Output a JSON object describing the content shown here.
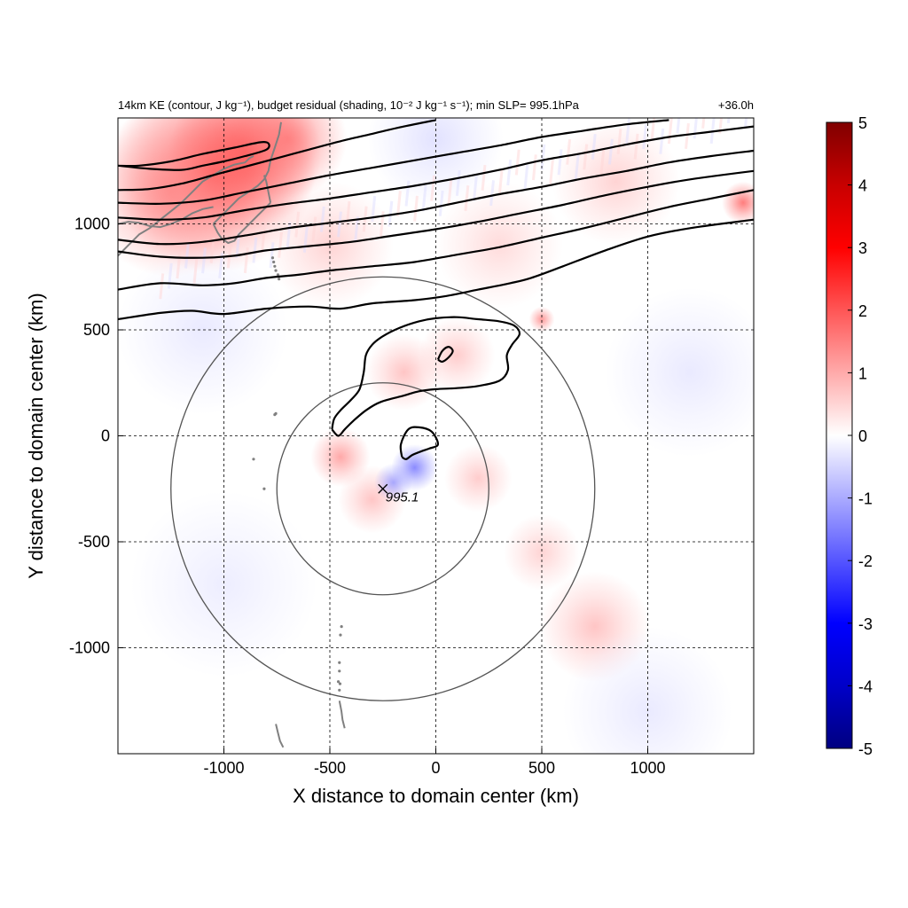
{
  "chart_data": {
    "type": "heatmap",
    "title_left": "14km KE (contour, J kg⁻¹), budget residual (shading, 10⁻² J kg⁻¹ s⁻¹); min SLP= 995.1hPa",
    "title_right": "+36.0h",
    "xlabel": "X distance to domain center (km)",
    "ylabel": "Y distance to domain center (km)",
    "xlim": [
      -1500,
      1500
    ],
    "ylim": [
      -1500,
      1500
    ],
    "xticks": [
      -1000,
      -500,
      0,
      500,
      1000
    ],
    "yticks": [
      -1000,
      -500,
      0,
      500,
      1000
    ],
    "grid": "dashed",
    "colorbar": {
      "min": -5,
      "max": 5,
      "ticks": [
        5,
        4,
        3,
        2,
        1,
        0,
        -1,
        -2,
        -3,
        -4,
        -5
      ],
      "colormap": "blue-white-red",
      "colors": {
        "low": "#000080",
        "mid_low": "#0000ff",
        "center": "#ffffff",
        "mid_high": "#ff0000",
        "high": "#800000"
      }
    },
    "min_slp": {
      "label": "995.1",
      "x": -250,
      "y": -250
    },
    "range_circles": [
      {
        "center": [
          -250,
          -250
        ],
        "radius_km": 500
      },
      {
        "center": [
          -250,
          -250
        ],
        "radius_km": 1000
      }
    ],
    "ke_contours": [
      {
        "points": [
          [
            -1500,
            550
          ],
          [
            -1300,
            580
          ],
          [
            -1150,
            590
          ],
          [
            -1000,
            575
          ],
          [
            -800,
            600
          ],
          [
            -600,
            610
          ],
          [
            -450,
            600
          ],
          [
            -300,
            625
          ],
          [
            -100,
            640
          ],
          [
            50,
            660
          ],
          [
            200,
            690
          ],
          [
            350,
            720
          ],
          [
            450,
            745
          ],
          [
            600,
            800
          ],
          [
            800,
            875
          ],
          [
            1000,
            940
          ],
          [
            1200,
            980
          ],
          [
            1500,
            1020
          ]
        ]
      },
      {
        "points": [
          [
            -1500,
            690
          ],
          [
            -1300,
            720
          ],
          [
            -1100,
            710
          ],
          [
            -950,
            720
          ],
          [
            -800,
            745
          ],
          [
            -650,
            760
          ],
          [
            -500,
            780
          ],
          [
            -300,
            800
          ],
          [
            -100,
            820
          ],
          [
            100,
            855
          ],
          [
            300,
            890
          ],
          [
            500,
            935
          ],
          [
            700,
            980
          ],
          [
            900,
            1030
          ],
          [
            1100,
            1080
          ],
          [
            1300,
            1120
          ],
          [
            1500,
            1160
          ]
        ]
      },
      {
        "points": [
          [
            -1500,
            870
          ],
          [
            -1300,
            845
          ],
          [
            -1100,
            840
          ],
          [
            -950,
            850
          ],
          [
            -800,
            875
          ],
          [
            -600,
            895
          ],
          [
            -400,
            915
          ],
          [
            -200,
            945
          ],
          [
            0,
            975
          ],
          [
            200,
            1010
          ],
          [
            400,
            1050
          ],
          [
            600,
            1090
          ],
          [
            800,
            1135
          ],
          [
            1000,
            1175
          ],
          [
            1200,
            1210
          ],
          [
            1500,
            1250
          ]
        ]
      },
      {
        "points": [
          [
            -1500,
            925
          ],
          [
            -1300,
            905
          ],
          [
            -1100,
            915
          ],
          [
            -900,
            945
          ],
          [
            -700,
            980
          ],
          [
            -500,
            1005
          ],
          [
            -300,
            1030
          ],
          [
            -100,
            1060
          ],
          [
            100,
            1100
          ],
          [
            300,
            1140
          ],
          [
            500,
            1175
          ],
          [
            700,
            1215
          ],
          [
            900,
            1250
          ],
          [
            1100,
            1290
          ],
          [
            1300,
            1320
          ],
          [
            1500,
            1345
          ]
        ]
      },
      {
        "points": [
          [
            -1500,
            1030
          ],
          [
            -1300,
            1020
          ],
          [
            -1100,
            1030
          ],
          [
            -900,
            1065
          ],
          [
            -700,
            1095
          ],
          [
            -500,
            1120
          ],
          [
            -300,
            1150
          ],
          [
            -100,
            1180
          ],
          [
            100,
            1215
          ],
          [
            300,
            1255
          ],
          [
            500,
            1300
          ],
          [
            700,
            1335
          ],
          [
            900,
            1375
          ],
          [
            1100,
            1410
          ],
          [
            1300,
            1435
          ],
          [
            1500,
            1460
          ]
        ]
      },
      {
        "points": [
          [
            -1500,
            1100
          ],
          [
            -1300,
            1095
          ],
          [
            -1100,
            1110
          ],
          [
            -900,
            1150
          ],
          [
            -700,
            1190
          ],
          [
            -500,
            1230
          ],
          [
            -300,
            1265
          ],
          [
            -100,
            1300
          ],
          [
            100,
            1335
          ],
          [
            300,
            1370
          ],
          [
            500,
            1410
          ],
          [
            700,
            1440
          ],
          [
            900,
            1470
          ],
          [
            1100,
            1490
          ]
        ]
      },
      {
        "points": [
          [
            -1500,
            1160
          ],
          [
            -1350,
            1165
          ],
          [
            -1200,
            1190
          ],
          [
            -1050,
            1230
          ],
          [
            -900,
            1270
          ],
          [
            -750,
            1310
          ],
          [
            -600,
            1350
          ],
          [
            -450,
            1390
          ],
          [
            -300,
            1425
          ],
          [
            -150,
            1460
          ],
          [
            0,
            1490
          ]
        ]
      },
      {
        "points": [
          [
            -1500,
            1275
          ],
          [
            -1350,
            1260
          ],
          [
            -1200,
            1255
          ],
          [
            -1100,
            1275
          ],
          [
            -1000,
            1295
          ],
          [
            -900,
            1320
          ],
          [
            -800,
            1350
          ],
          [
            -790,
            1380
          ],
          [
            -830,
            1385
          ],
          [
            -950,
            1360
          ],
          [
            -1100,
            1330
          ],
          [
            -1250,
            1295
          ],
          [
            -1400,
            1275
          ],
          [
            -1500,
            1275
          ]
        ]
      },
      {
        "points": [
          [
            -490,
            30
          ],
          [
            -480,
            80
          ],
          [
            -450,
            120
          ],
          [
            -400,
            170
          ],
          [
            -360,
            220
          ],
          [
            -340,
            300
          ],
          [
            -330,
            380
          ],
          [
            -300,
            430
          ],
          [
            -250,
            470
          ],
          [
            -170,
            510
          ],
          [
            -80,
            540
          ],
          [
            0,
            555
          ],
          [
            100,
            560
          ],
          [
            200,
            550
          ],
          [
            300,
            540
          ],
          [
            370,
            520
          ],
          [
            395,
            480
          ],
          [
            360,
            430
          ],
          [
            335,
            380
          ],
          [
            340,
            310
          ],
          [
            300,
            260
          ],
          [
            200,
            235
          ],
          [
            100,
            225
          ],
          [
            0,
            220
          ],
          [
            -80,
            210
          ],
          [
            -150,
            190
          ],
          [
            -260,
            160
          ],
          [
            -330,
            120
          ],
          [
            -390,
            70
          ],
          [
            -430,
            30
          ],
          [
            -460,
            0
          ],
          [
            -490,
            30
          ]
        ]
      },
      {
        "points": [
          [
            10,
            360
          ],
          [
            30,
            400
          ],
          [
            60,
            420
          ],
          [
            80,
            400
          ],
          [
            60,
            370
          ],
          [
            30,
            350
          ],
          [
            10,
            360
          ]
        ]
      },
      {
        "points": [
          [
            -160,
            -100
          ],
          [
            -165,
            -40
          ],
          [
            -130,
            30
          ],
          [
            -80,
            40
          ],
          [
            -20,
            20
          ],
          [
            10,
            -40
          ],
          [
            -30,
            -60
          ],
          [
            -60,
            -70
          ],
          [
            -110,
            -90
          ],
          [
            -140,
            -110
          ],
          [
            -160,
            -100
          ]
        ]
      }
    ],
    "residual_blobs": [
      {
        "x": -1050,
        "y": 1250,
        "value": 2.2,
        "sigma": 240
      },
      {
        "x": -900,
        "y": 1330,
        "value": 2.0,
        "sigma": 180
      },
      {
        "x": -1250,
        "y": 1150,
        "value": 1.4,
        "sigma": 200
      },
      {
        "x": -700,
        "y": 1400,
        "value": 1.6,
        "sigma": 140
      },
      {
        "x": -450,
        "y": -100,
        "value": 1.2,
        "sigma": 70
      },
      {
        "x": -300,
        "y": -300,
        "value": 0.8,
        "sigma": 80
      },
      {
        "x": -100,
        "y": -150,
        "value": -1.6,
        "sigma": 55
      },
      {
        "x": -200,
        "y": -220,
        "value": -1.2,
        "sigma": 45
      },
      {
        "x": 200,
        "y": -200,
        "value": 0.7,
        "sigma": 80
      },
      {
        "x": -150,
        "y": 300,
        "value": 0.8,
        "sigma": 90
      },
      {
        "x": 100,
        "y": 380,
        "value": 0.7,
        "sigma": 90
      },
      {
        "x": 500,
        "y": 550,
        "value": 1.4,
        "sigma": 30
      },
      {
        "x": 750,
        "y": -900,
        "value": 0.8,
        "sigma": 130
      },
      {
        "x": 500,
        "y": -550,
        "value": 0.6,
        "sigma": 90
      },
      {
        "x": 1450,
        "y": 1100,
        "value": 1.8,
        "sigma": 50
      },
      {
        "x": 300,
        "y": 900,
        "value": 0.5,
        "sigma": 150
      },
      {
        "x": -500,
        "y": 900,
        "value": 0.6,
        "sigma": 150
      },
      {
        "x": 1200,
        "y": 300,
        "value": -0.3,
        "sigma": 200
      },
      {
        "x": -1100,
        "y": 500,
        "value": -0.3,
        "sigma": 200
      },
      {
        "x": 1000,
        "y": -1300,
        "value": -0.3,
        "sigma": 200
      },
      {
        "x": -1000,
        "y": -700,
        "value": -0.25,
        "sigma": 220
      },
      {
        "x": 0,
        "y": 1400,
        "value": -0.4,
        "sigma": 160
      },
      {
        "x": 850,
        "y": 1200,
        "value": 0.6,
        "sigma": 150
      }
    ],
    "coastlines": [
      {
        "points": [
          [
            -1500,
            850
          ],
          [
            -1450,
            900
          ],
          [
            -1400,
            950
          ],
          [
            -1350,
            980
          ],
          [
            -1300,
            1020
          ],
          [
            -1250,
            1060
          ],
          [
            -1200,
            1100
          ],
          [
            -1150,
            1150
          ],
          [
            -1100,
            1200
          ],
          [
            -1050,
            1230
          ],
          [
            -1000,
            1260
          ],
          [
            -950,
            1280
          ],
          [
            -900,
            1290
          ],
          [
            -880,
            1310
          ],
          [
            -860,
            1320
          ]
        ]
      },
      {
        "points": [
          [
            -1500,
            1000
          ],
          [
            -1450,
            1010
          ],
          [
            -1400,
            1005
          ],
          [
            -1350,
            990
          ],
          [
            -1300,
            985
          ],
          [
            -1250,
            1000
          ],
          [
            -1200,
            1020
          ],
          [
            -1150,
            1050
          ],
          [
            -1100,
            1070
          ],
          [
            -1050,
            1080
          ]
        ]
      },
      {
        "points": [
          [
            -1050,
            1000
          ],
          [
            -1020,
            1030
          ],
          [
            -990,
            1060
          ],
          [
            -960,
            1090
          ],
          [
            -930,
            1120
          ],
          [
            -900,
            1140
          ],
          [
            -870,
            1160
          ],
          [
            -840,
            1180
          ],
          [
            -810,
            1210
          ],
          [
            -790,
            1250
          ],
          [
            -780,
            1300
          ],
          [
            -760,
            1360
          ],
          [
            -740,
            1420
          ],
          [
            -730,
            1480
          ]
        ]
      },
      {
        "points": [
          [
            -1050,
            1000
          ],
          [
            -1030,
            960
          ],
          [
            -1010,
            930
          ],
          [
            -980,
            910
          ],
          [
            -950,
            920
          ],
          [
            -930,
            950
          ],
          [
            -900,
            980
          ],
          [
            -880,
            1000
          ],
          [
            -860,
            1020
          ],
          [
            -840,
            1040
          ],
          [
            -820,
            1060
          ],
          [
            -800,
            1080
          ],
          [
            -780,
            1100
          ]
        ]
      },
      {
        "points": [
          [
            -780,
            1100
          ],
          [
            -790,
            1150
          ],
          [
            -800,
            1200
          ],
          [
            -810,
            1230
          ]
        ]
      },
      {
        "points": [
          [
            -755,
            -1360
          ],
          [
            -745,
            -1400
          ],
          [
            -735,
            -1440
          ],
          [
            -720,
            -1470
          ]
        ]
      },
      {
        "points": [
          [
            -455,
            -1250
          ],
          [
            -445,
            -1300
          ],
          [
            -440,
            -1340
          ],
          [
            -430,
            -1380
          ]
        ]
      }
    ],
    "islands": [
      {
        "x": -760,
        "y": 800
      },
      {
        "x": -755,
        "y": 780
      },
      {
        "x": -745,
        "y": 760
      },
      {
        "x": -740,
        "y": 740
      },
      {
        "x": -765,
        "y": 820
      },
      {
        "x": -770,
        "y": 840
      },
      {
        "x": -755,
        "y": 105
      },
      {
        "x": -760,
        "y": 100
      },
      {
        "x": -860,
        "y": -110
      },
      {
        "x": -810,
        "y": -250
      },
      {
        "x": -445,
        "y": -900
      },
      {
        "x": -450,
        "y": -940
      },
      {
        "x": -455,
        "y": -1070
      },
      {
        "x": -455,
        "y": -1110
      },
      {
        "x": -460,
        "y": -1160
      },
      {
        "x": -455,
        "y": -1200
      },
      {
        "x": -452,
        "y": -1170
      }
    ]
  }
}
